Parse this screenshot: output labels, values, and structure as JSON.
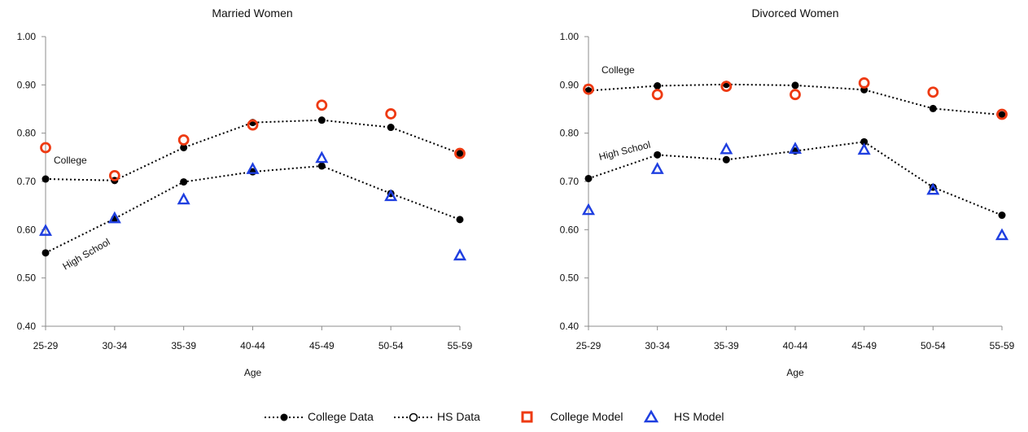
{
  "colors": {
    "college_model": "#ee3a12",
    "hs_model": "#1f3fe0",
    "data": "#000000",
    "axis": "#8c8c8c"
  },
  "legend": {
    "college_data": "College Data",
    "hs_data": "HS Data",
    "college_model": "College Model",
    "hs_model": "HS Model"
  },
  "chart_data": [
    {
      "type": "line",
      "title": "Married Women",
      "xlabel": "Age",
      "ylabel": "",
      "categories": [
        "25-29",
        "30-34",
        "35-39",
        "40-44",
        "45-49",
        "50-54",
        "55-59"
      ],
      "ylim": [
        0.4,
        1.0
      ],
      "yticks": [
        "0.40",
        "0.50",
        "0.60",
        "0.70",
        "0.80",
        "0.90",
        "1.00"
      ],
      "grid": false,
      "annotations": [
        "College",
        "High School"
      ],
      "series": [
        {
          "name": "College Data",
          "kind": "data",
          "values": [
            0.705,
            0.702,
            0.77,
            0.822,
            0.827,
            0.812,
            0.758
          ]
        },
        {
          "name": "HS Data",
          "kind": "data",
          "values": [
            0.552,
            0.623,
            0.699,
            0.72,
            0.732,
            0.675,
            0.621
          ]
        },
        {
          "name": "College Model",
          "kind": "college_model",
          "values": [
            0.77,
            0.712,
            0.786,
            0.817,
            0.858,
            0.84,
            0.758
          ]
        },
        {
          "name": "HS Model",
          "kind": "hs_model",
          "values": [
            0.597,
            0.623,
            0.662,
            0.725,
            0.748,
            0.669,
            0.546
          ]
        }
      ]
    },
    {
      "type": "line",
      "title": "Divorced Women",
      "xlabel": "Age",
      "ylabel": "",
      "categories": [
        "25-29",
        "30-34",
        "35-39",
        "40-44",
        "45-49",
        "50-54",
        "55-59"
      ],
      "ylim": [
        0.4,
        1.0
      ],
      "yticks": [
        "0.40",
        "0.50",
        "0.60",
        "0.70",
        "0.80",
        "0.90",
        "1.00"
      ],
      "grid": false,
      "annotations": [
        "College",
        "High School"
      ],
      "series": [
        {
          "name": "College Data",
          "kind": "data",
          "values": [
            0.888,
            0.898,
            0.901,
            0.899,
            0.89,
            0.851,
            0.838
          ]
        },
        {
          "name": "HS Data",
          "kind": "data",
          "values": [
            0.706,
            0.755,
            0.745,
            0.763,
            0.782,
            0.688,
            0.63
          ]
        },
        {
          "name": "College Model",
          "kind": "college_model",
          "values": [
            0.891,
            0.88,
            0.897,
            0.88,
            0.904,
            0.885,
            0.839
          ]
        },
        {
          "name": "HS Model",
          "kind": "hs_model",
          "values": [
            0.64,
            0.725,
            0.766,
            0.767,
            0.765,
            0.682,
            0.588
          ]
        }
      ]
    }
  ]
}
